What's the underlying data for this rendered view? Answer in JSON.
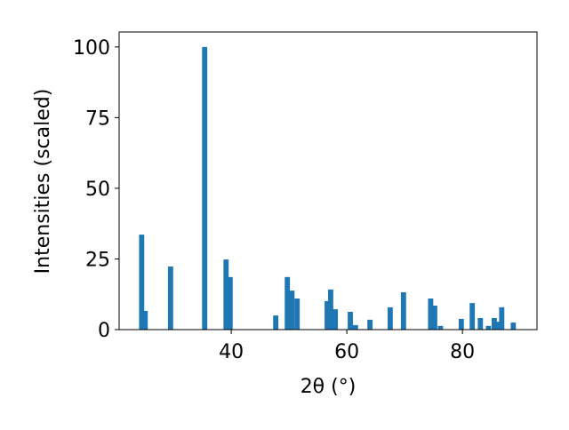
{
  "chart_data": {
    "type": "bar",
    "xlabel": "2θ (°)",
    "ylabel": "Intensities (scaled)",
    "x": [
      24.5,
      25.1,
      29.5,
      35.4,
      39.1,
      39.8,
      47.7,
      49.7,
      50.5,
      51.4,
      56.6,
      57.2,
      58.0,
      60.6,
      61.5,
      64.0,
      67.5,
      69.8,
      74.5,
      75.2,
      76.2,
      79.8,
      81.7,
      83.1,
      84.5,
      85.5,
      86.3,
      86.8,
      88.8
    ],
    "values": [
      33.6,
      6.6,
      22.3,
      100,
      24.8,
      18.6,
      5.0,
      18.6,
      13.8,
      11.0,
      10.1,
      14.2,
      7.2,
      6.3,
      1.6,
      3.5,
      7.9,
      13.2,
      11.0,
      8.5,
      1.3,
      3.8,
      9.4,
      4.1,
      1.3,
      4.1,
      2.8,
      7.9,
      2.5
    ],
    "bar_width": 0.9,
    "color": "#1f77b4",
    "xlim": [
      20.6,
      92.9
    ],
    "xticks": [
      40,
      60,
      80
    ],
    "ylim": [
      0,
      105.3
    ],
    "yticks": [
      0,
      25,
      50,
      75,
      100
    ],
    "grid": false
  }
}
